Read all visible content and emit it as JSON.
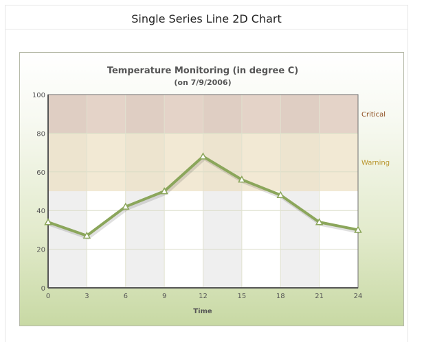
{
  "page": {
    "title": "Single Series Line 2D Chart"
  },
  "colors": {
    "line": "#8BA65B",
    "anchor_fill": "#ffffff",
    "anchor_border": "#8BA65B",
    "critical_zone": "#d9c1b0",
    "warning_zone": "#ece0c2",
    "critical_label": "#8b4a1a",
    "warning_label": "#b8942a"
  },
  "chart_data": {
    "type": "line",
    "title": "Temperature Monitoring (in degree C)",
    "subtitle": "(on 7/9/2006)",
    "xlabel": "Time",
    "ylabel": "",
    "x": [
      0,
      3,
      6,
      9,
      12,
      15,
      18,
      21,
      24
    ],
    "values": [
      34,
      27,
      42,
      50,
      68,
      56,
      48,
      34,
      30
    ],
    "xlim": [
      0,
      24
    ],
    "ylim": [
      0,
      100
    ],
    "x_ticks": [
      "0",
      "3",
      "6",
      "9",
      "12",
      "15",
      "18",
      "21",
      "24"
    ],
    "y_ticks": [
      "0",
      "20",
      "40",
      "60",
      "80",
      "100"
    ],
    "grid": true,
    "alternating_column_bands": true,
    "trend_zones": [
      {
        "label": "Critical",
        "from": 80,
        "to": 100
      },
      {
        "label": "Warning",
        "from": 50,
        "to": 80
      }
    ]
  }
}
